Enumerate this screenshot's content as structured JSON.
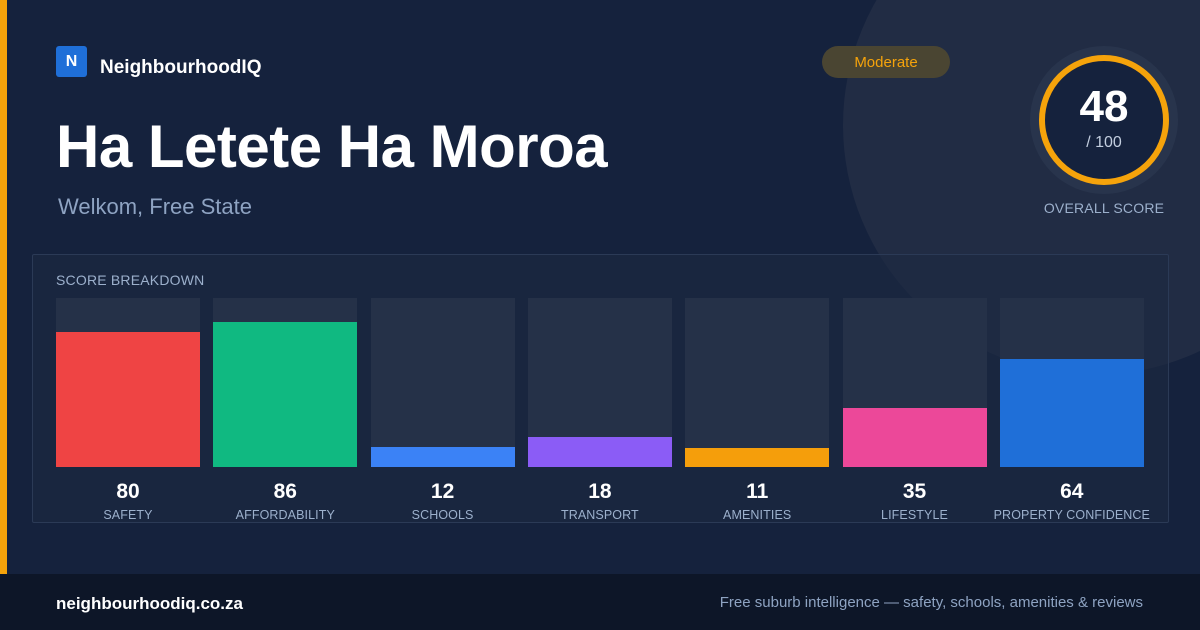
{
  "brand": {
    "logo_letter": "N",
    "name": "NeighbourhoodIQ"
  },
  "badge": {
    "label": "Moderate",
    "color": "#f5a30b"
  },
  "header": {
    "title": "Ha Letete Ha Moroa",
    "location": "Welkom, Free State"
  },
  "overall": {
    "score": "48",
    "max_label": "/ 100",
    "label": "OVERALL SCORE",
    "score_fraction": 0.48,
    "ring_color": "#f5a30b"
  },
  "breakdown": {
    "title": "SCORE BREAKDOWN",
    "items": [
      {
        "value": "80",
        "label": "SAFETY",
        "score": 80,
        "color": "#ef4444"
      },
      {
        "value": "86",
        "label": "AFFORDABILITY",
        "score": 86,
        "color": "#10b981"
      },
      {
        "value": "12",
        "label": "SCHOOLS",
        "score": 12,
        "color": "#3b82f6"
      },
      {
        "value": "18",
        "label": "TRANSPORT",
        "score": 18,
        "color": "#8b5cf6"
      },
      {
        "value": "11",
        "label": "AMENITIES",
        "score": 11,
        "color": "#f59e0b"
      },
      {
        "value": "35",
        "label": "LIFESTYLE",
        "score": 35,
        "color": "#ec4899"
      },
      {
        "value": "64",
        "label": "PROPERTY CONFIDENCE",
        "score": 64,
        "color": "#1f6fd8"
      }
    ]
  },
  "footer": {
    "url": "neighbourhoodiq.co.za",
    "tagline": "Free suburb intelligence — safety, schools, amenities & reviews"
  }
}
